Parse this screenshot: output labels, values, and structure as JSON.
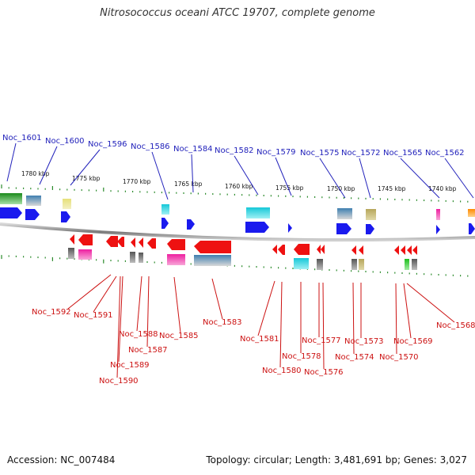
{
  "title": "Nitrosococcus oceani ATCC 19707, complete genome",
  "footer": {
    "accession": "Accession: NC_007484",
    "summary": "Topology: circular; Length: 3,481,691 bp; Genes: 3,027"
  },
  "scale_labels": [
    "1780 kbp",
    "1775 kbp",
    "1770 kbp",
    "1765 kbp",
    "1760 kbp",
    "1755 kbp",
    "1750 kbp",
    "1745 kbp",
    "1740 kbp"
  ],
  "top_genes": [
    "Noc_1601",
    "Noc_1600",
    "Noc_1596",
    "Noc_1586",
    "Noc_1584",
    "Noc_1582",
    "Noc_1579",
    "Noc_1575",
    "Noc_1572",
    "Noc_1565",
    "Noc_1562"
  ],
  "bottom_genes": [
    "Noc_1592",
    "Noc_1591",
    "Noc_1588",
    "Noc_1589",
    "Noc_1590",
    "Noc_1587",
    "Noc_1585",
    "Noc_1583",
    "Noc_1581",
    "Noc_1580",
    "Noc_1578",
    "Noc_1577",
    "Noc_1576",
    "Noc_1574",
    "Noc_1573",
    "Noc_1570",
    "Noc_1569",
    "Noc_1568"
  ],
  "colors": {
    "forward_gene": "#1a1aee",
    "reverse_gene": "#ee1111",
    "forward_label": "#2222bb",
    "reverse_label": "#cc1111",
    "tick": "#2a8a2a",
    "backbone": "#9a9a9a"
  }
}
